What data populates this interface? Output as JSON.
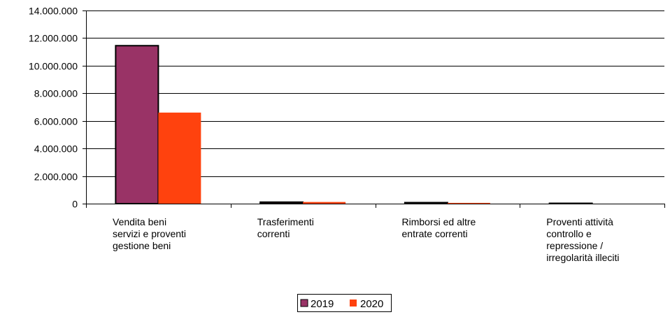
{
  "chart_data": {
    "type": "bar",
    "categories": [
      [
        "Vendita beni",
        "servizi e proventi",
        "gestione beni"
      ],
      [
        "Trasferimenti",
        "correnti"
      ],
      [
        "Rimborsi ed altre",
        "entrate correnti"
      ],
      [
        "Proventi attività",
        "controllo e",
        "repressione /",
        "irregolarità illeciti"
      ]
    ],
    "series": [
      {
        "name": "2019",
        "values": [
          11450000,
          110000,
          75000,
          25000
        ]
      },
      {
        "name": "2020",
        "values": [
          6600000,
          120000,
          55000,
          0
        ]
      }
    ],
    "ylim": [
      0,
      14000000
    ],
    "yticks": [
      0,
      2000000,
      4000000,
      6000000,
      8000000,
      10000000,
      12000000,
      14000000
    ],
    "ytick_labels": [
      "0",
      "2.000.000",
      "4.000.000",
      "6.000.000",
      "8.000.000",
      "10.000.000",
      "12.000.000",
      "14.000.000"
    ],
    "grid": true,
    "legend_position": "bottom-center",
    "colors": {
      "2019": "#993366",
      "2020": "#ff420e",
      "grid": "#000000",
      "axis": "#000000"
    }
  }
}
